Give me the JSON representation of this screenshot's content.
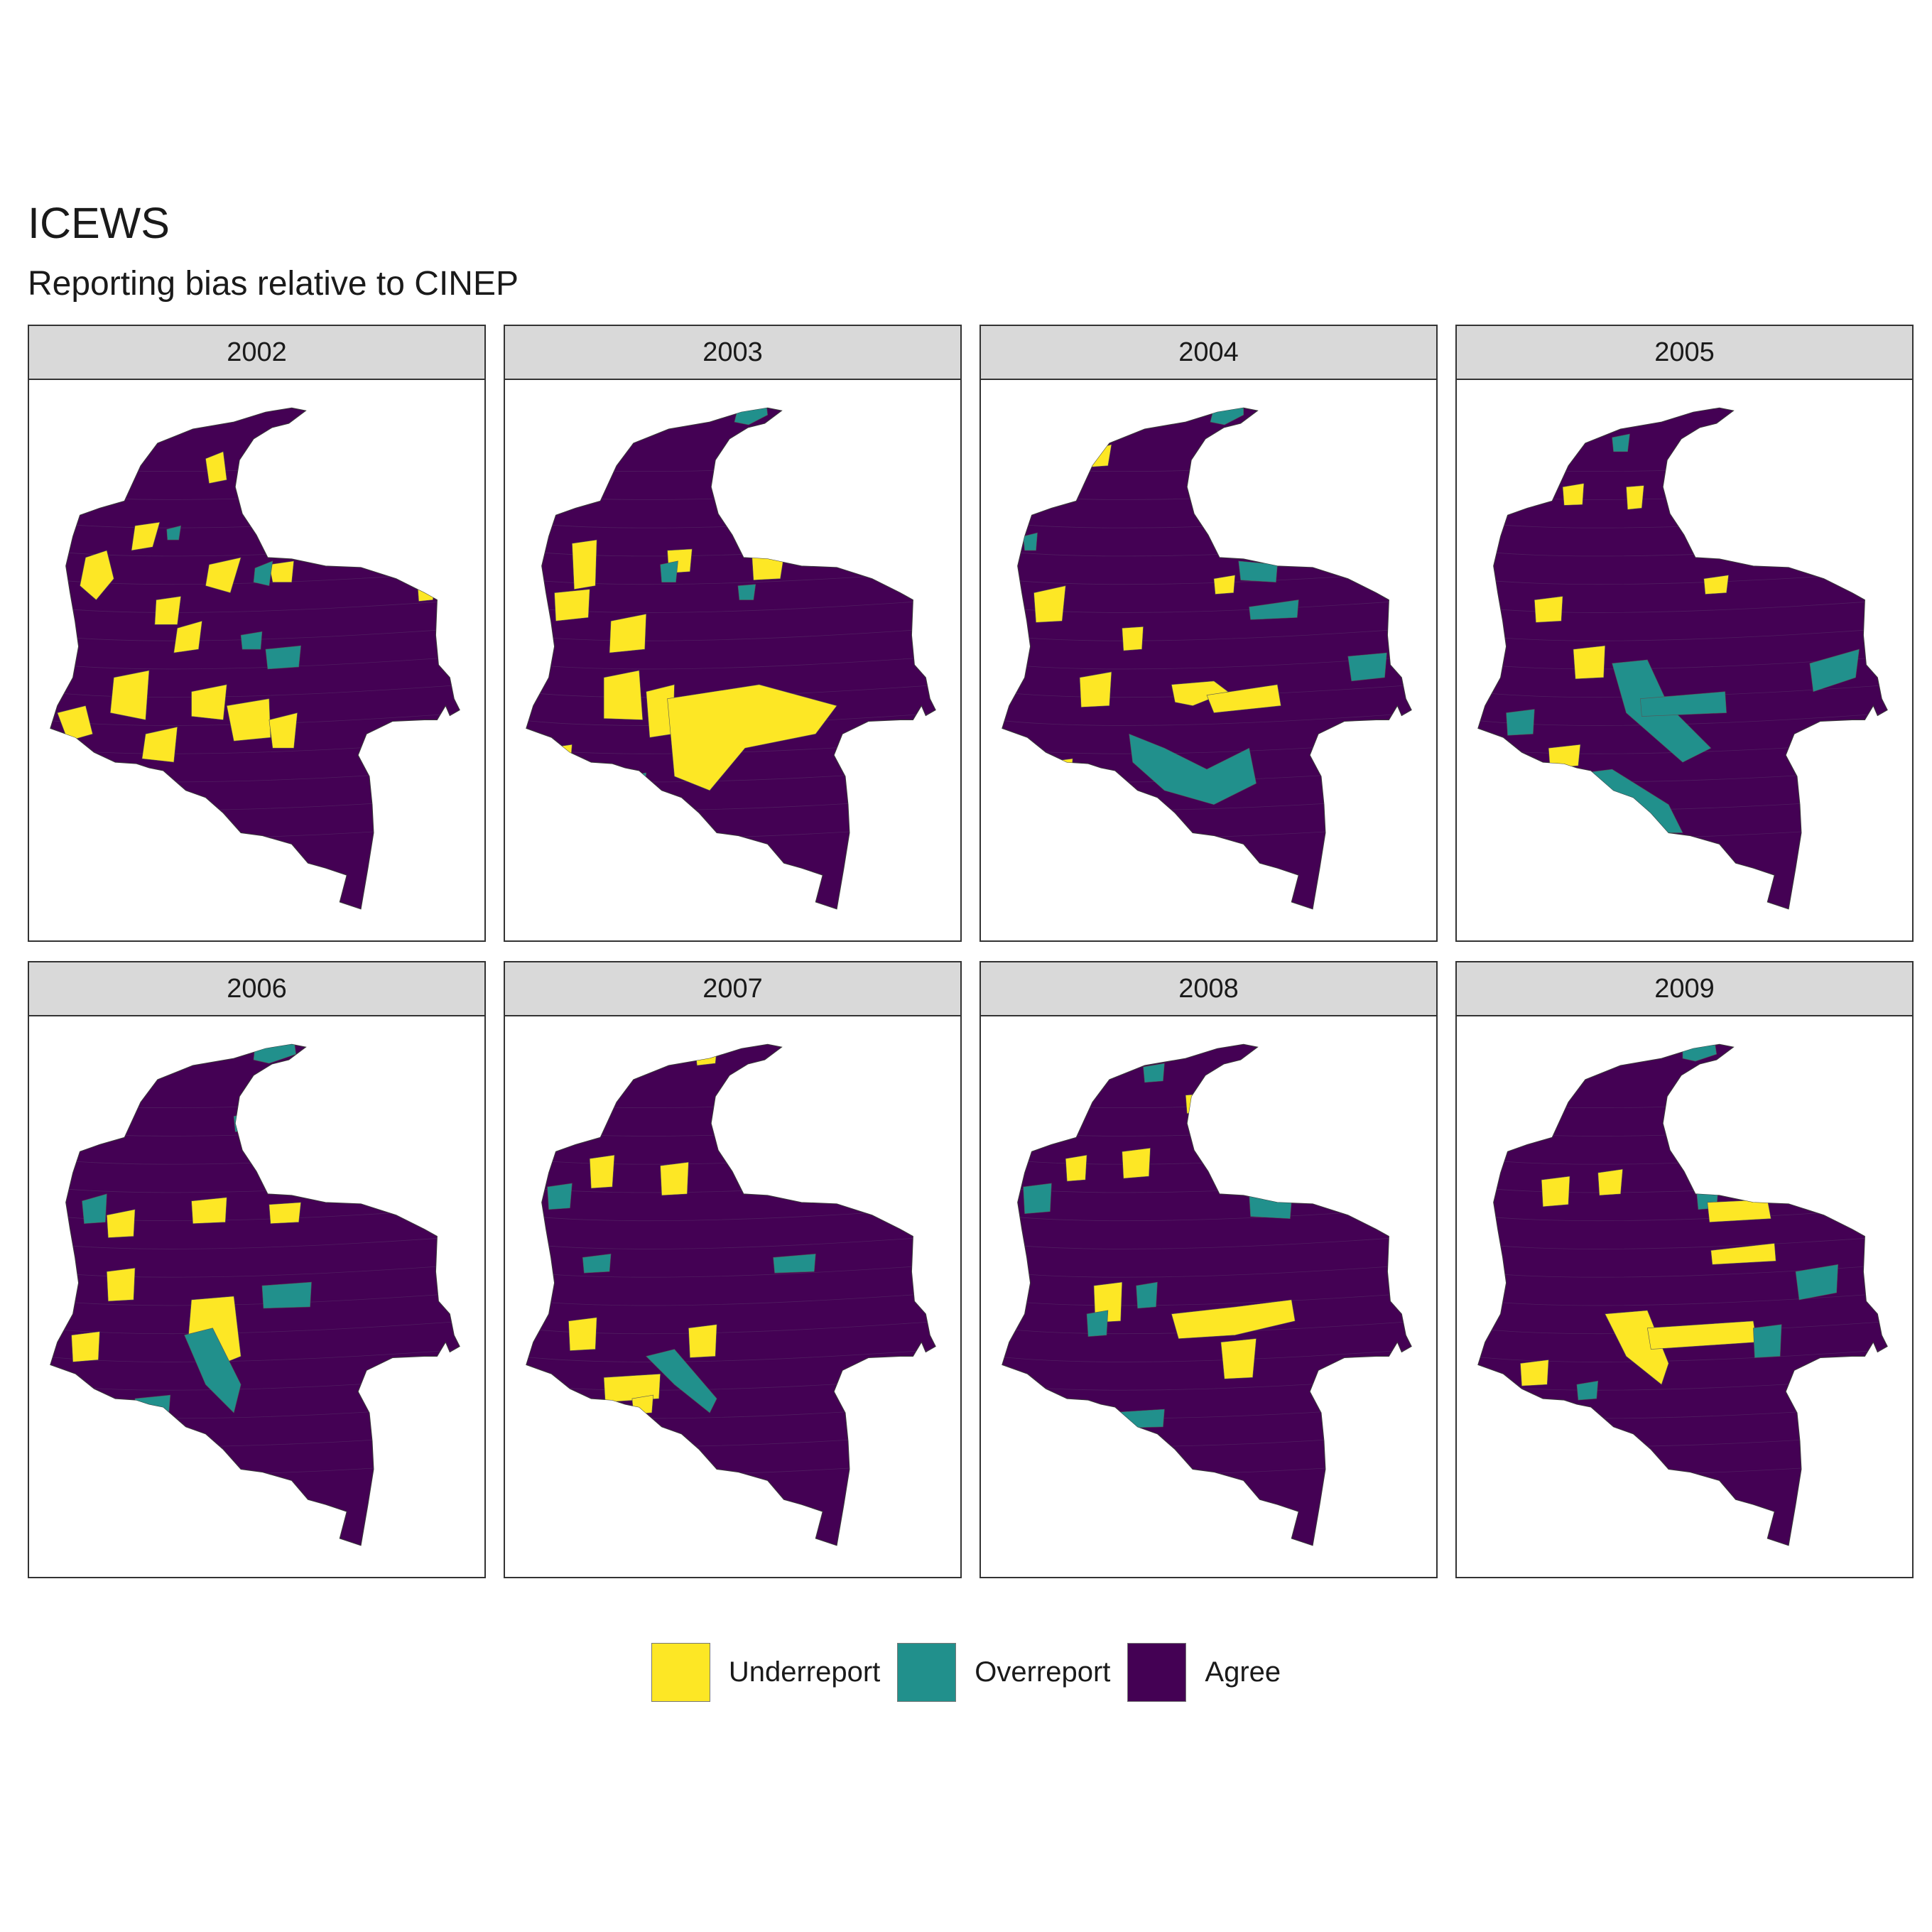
{
  "title": "ICEWS",
  "subtitle": "Reporting bias relative to CINEP",
  "colors": {
    "underreport": "#FDE725",
    "overreport": "#21908C",
    "agree": "#440154",
    "strip_bg": "#D9D9D9",
    "border": "#333333"
  },
  "legend": [
    {
      "label": "Underreport",
      "color": "#FDE725"
    },
    {
      "label": "Overreport",
      "color": "#21908C"
    },
    {
      "label": "Agree",
      "color": "#440154"
    }
  ],
  "panels": [
    {
      "year": "2002"
    },
    {
      "year": "2003"
    },
    {
      "year": "2004"
    },
    {
      "year": "2005"
    },
    {
      "year": "2006"
    },
    {
      "year": "2007"
    },
    {
      "year": "2008"
    },
    {
      "year": "2009"
    }
  ]
}
